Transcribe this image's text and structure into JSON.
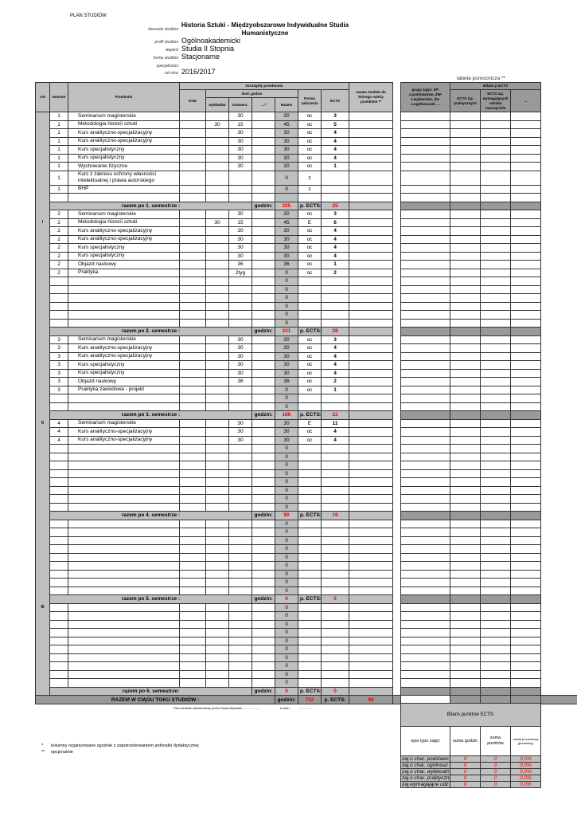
{
  "title": "PLAN STUDIÓW",
  "meta": {
    "kierunek_label": "kierunek studiów:",
    "kierunek": "Historia Sztuki - Międzyobszarowe Indywidualne Studia Humanistyczne",
    "profil_label": "profil studiów:",
    "profil": "Ogólnoakademicki",
    "stopien_label": "stopień:",
    "stopien": "Studia II Stopnia",
    "forma_label": "forma studiów:",
    "forma": "Stacjonarne",
    "specjalnosc_label": "specjalności:",
    "od_roku_label": "od roku:",
    "od_roku": "2016/2017"
  },
  "headers": {
    "rok": "rok",
    "semestr": "semestr",
    "przedmiot": "Przedmiot",
    "szczegoly": "Szczegóły przedmiotu",
    "kod": "KOD",
    "ilosc_godzin": "ilość godzin",
    "wykladow": "wykładów",
    "konwers": "konwers.",
    "other": "....*",
    "razem": "Razem",
    "forma": "Forma zaliczenia",
    "ects": "ECTS",
    "modul": "nazwa modułu do którego należy przedmiot **"
  },
  "aux": {
    "title": "tabela pomocnicza **",
    "grupy": "grupy zajęć: ZP-z.podstawowe, ZW-z.wybieralne, ZU-z.ogólnouczel. ...",
    "bilans": "Bilans p ECTS",
    "ects_prakt": "ECTS zaj. praktycznych",
    "ects_naucz": "ECTS zaj. wymagających udziału nauczyciela",
    "other": "..."
  },
  "years": [
    "I",
    "II",
    "III"
  ],
  "semesters": [
    {
      "rows": [
        [
          "1",
          "Seminarium magisterskie",
          "",
          "",
          "30",
          "",
          "30",
          "oc",
          "3"
        ],
        [
          "1",
          "Metodologia historii sztuki",
          "",
          "30",
          "15",
          "",
          "45",
          "oc",
          "5"
        ],
        [
          "1",
          "Kurs analityczno-specjalizacyjny",
          "",
          "",
          "30",
          "",
          "30",
          "oc",
          "4"
        ],
        [
          "1",
          "Kurs analityczno-specjalizacyjny",
          "",
          "",
          "30",
          "",
          "30",
          "oc",
          "4"
        ],
        [
          "1",
          "Kurs specjalistyczny",
          "",
          "",
          "30",
          "",
          "30",
          "oc",
          "4"
        ],
        [
          "1",
          "Kurs specjalistyczny",
          "",
          "",
          "30",
          "",
          "30",
          "oc",
          "4"
        ],
        [
          "1",
          "Wychowanie fizyczne",
          "",
          "",
          "30",
          "",
          "30",
          "oc",
          "1"
        ],
        [
          "1",
          "Kurs z zakresu ochrony własności intelektualnej i prawa autorskiego",
          "",
          "",
          "",
          "",
          "0",
          "z",
          ""
        ],
        [
          "1",
          "BHP",
          "",
          "",
          "",
          "",
          "0",
          "z",
          ""
        ],
        [
          "",
          "",
          "",
          "",
          "",
          "",
          "",
          "",
          ""
        ]
      ],
      "label": "razem po 1. semestrze :",
      "godzin": "225",
      "ects": "25"
    },
    {
      "rows": [
        [
          "2",
          "Seminarium magisterskie",
          "",
          "",
          "30",
          "",
          "30",
          "oc",
          "3"
        ],
        [
          "2",
          "Metodologia historii sztuki",
          "",
          "30",
          "15",
          "",
          "45",
          "E",
          "6"
        ],
        [
          "2",
          "Kurs analityczno-specjalizacyjny",
          "",
          "",
          "30",
          "",
          "30",
          "oc",
          "4"
        ],
        [
          "2",
          "Kurs analityczno-specjalizacyjny",
          "",
          "",
          "30",
          "",
          "30",
          "oc",
          "4"
        ],
        [
          "2",
          "Kurs specjalistyczny",
          "",
          "",
          "30",
          "",
          "30",
          "oc",
          "4"
        ],
        [
          "2",
          "Kurs specjalistyczny",
          "",
          "",
          "30",
          "",
          "30",
          "oc",
          "4"
        ],
        [
          "2",
          "Objazd naukowy",
          "",
          "",
          "36",
          "",
          "36",
          "oc",
          "1"
        ],
        [
          "2",
          "Praktyka",
          "",
          "",
          "2tyg",
          "",
          "0",
          "oc",
          "2"
        ],
        [
          "",
          "",
          "",
          "",
          "",
          "",
          "0",
          "",
          ""
        ],
        [
          "",
          "",
          "",
          "",
          "",
          "",
          "0",
          "",
          ""
        ],
        [
          "",
          "",
          "",
          "",
          "",
          "",
          "0",
          "",
          ""
        ],
        [
          "",
          "",
          "",
          "",
          "",
          "",
          "0",
          "",
          ""
        ],
        [
          "",
          "",
          "",
          "",
          "",
          "",
          "0",
          "",
          ""
        ],
        [
          "",
          "",
          "",
          "",
          "",
          "",
          "0",
          "",
          ""
        ]
      ],
      "label": "razem po 2. semestrze :",
      "godzin": "231",
      "ects": "28"
    },
    {
      "rows": [
        [
          "3",
          "Seminarium magisterskie",
          "",
          "",
          "30",
          "",
          "30",
          "oc",
          "3"
        ],
        [
          "3",
          "Kurs analityczno-specjalizacyjny",
          "",
          "",
          "30",
          "",
          "30",
          "oc",
          "4"
        ],
        [
          "3",
          "Kurs analityczno-specjalizacyjny",
          "",
          "",
          "30",
          "",
          "30",
          "oc",
          "4"
        ],
        [
          "3",
          "Kurs specjalistyczny",
          "",
          "",
          "30",
          "",
          "30",
          "oc",
          "4"
        ],
        [
          "3",
          "Kurs specjalistyczny",
          "",
          "",
          "30",
          "",
          "30",
          "oc",
          "4"
        ],
        [
          "3",
          "Objazd naukowy",
          "",
          "",
          "36",
          "",
          "36",
          "oc",
          "2"
        ],
        [
          "3",
          "Praktyka zawodowa - projekt",
          "",
          "",
          "",
          "",
          "0",
          "oc",
          "1"
        ],
        [
          "",
          "",
          "",
          "",
          "",
          "",
          "0",
          "",
          ""
        ],
        [
          "",
          "",
          "",
          "",
          "",
          "",
          "0",
          "",
          ""
        ]
      ],
      "label": "razem po 3. semestrze :",
      "godzin": "186",
      "ects": "22"
    },
    {
      "rows": [
        [
          "4",
          "Seminarium magisterskie",
          "",
          "",
          "30",
          "",
          "30",
          "E",
          "11"
        ],
        [
          "4",
          "Kurs analityczno-specjalizacyjny",
          "",
          "",
          "30",
          "",
          "30",
          "oc",
          "4"
        ],
        [
          "4",
          "Kurs analityczno-specjalizacyjny",
          "",
          "",
          "30",
          "",
          "30",
          "oc",
          "4"
        ],
        [
          "",
          "",
          "",
          "",
          "",
          "",
          "0",
          "",
          ""
        ],
        [
          "",
          "",
          "",
          "",
          "",
          "",
          "0",
          "",
          ""
        ],
        [
          "",
          "",
          "",
          "",
          "",
          "",
          "0",
          "",
          ""
        ],
        [
          "",
          "",
          "",
          "",
          "",
          "",
          "0",
          "",
          ""
        ],
        [
          "",
          "",
          "",
          "",
          "",
          "",
          "0",
          "",
          ""
        ],
        [
          "",
          "",
          "",
          "",
          "",
          "",
          "0",
          "",
          ""
        ],
        [
          "",
          "",
          "",
          "",
          "",
          "",
          "0",
          "",
          ""
        ],
        [
          "",
          "",
          "",
          "",
          "",
          "",
          "0",
          "",
          ""
        ]
      ],
      "label": "razem po 4. semestrze :",
      "godzin": "90",
      "ects": "19"
    },
    {
      "rows": [
        [
          "",
          "",
          "",
          "",
          "",
          "",
          "0",
          "",
          ""
        ],
        [
          "",
          "",
          "",
          "",
          "",
          "",
          "0",
          "",
          ""
        ],
        [
          "",
          "",
          "",
          "",
          "",
          "",
          "0",
          "",
          ""
        ],
        [
          "",
          "",
          "",
          "",
          "",
          "",
          "0",
          "",
          ""
        ],
        [
          "",
          "",
          "",
          "",
          "",
          "",
          "0",
          "",
          ""
        ],
        [
          "",
          "",
          "",
          "",
          "",
          "",
          "0",
          "",
          ""
        ],
        [
          "",
          "",
          "",
          "",
          "",
          "",
          "0",
          "",
          ""
        ],
        [
          "",
          "",
          "",
          "",
          "",
          "",
          "0",
          "",
          ""
        ],
        [
          "",
          "",
          "",
          "",
          "",
          "",
          "0",
          "",
          ""
        ]
      ],
      "label": "razem po 5. semestrze :",
      "godzin": "0",
      "ects": "0"
    },
    {
      "rows": [
        [
          "",
          "",
          "",
          "",
          "",
          "",
          "0",
          "",
          ""
        ],
        [
          "",
          "",
          "",
          "",
          "",
          "",
          "0",
          "",
          ""
        ],
        [
          "",
          "",
          "",
          "",
          "",
          "",
          "0",
          "",
          ""
        ],
        [
          "",
          "",
          "",
          "",
          "",
          "",
          "0",
          "",
          ""
        ],
        [
          "",
          "",
          "",
          "",
          "",
          "",
          "0",
          "",
          ""
        ],
        [
          "",
          "",
          "",
          "",
          "",
          "",
          "0",
          "",
          ""
        ],
        [
          "",
          "",
          "",
          "",
          "",
          "",
          "0",
          "",
          ""
        ],
        [
          "",
          "",
          "",
          "",
          "",
          "",
          "0",
          "",
          ""
        ],
        [
          "",
          "",
          "",
          "",
          "",
          "",
          "0",
          "",
          ""
        ],
        [
          "",
          "",
          "",
          "",
          "",
          "",
          "0",
          "",
          ""
        ]
      ],
      "label": "razem po 6. semestrze:",
      "godzin": "0",
      "ects": "0"
    }
  ],
  "sum_labels": {
    "godzin": "godzin:",
    "ects": "p. ECTS:"
  },
  "total": {
    "label": "RAZEM  W CIĄGU TOKU STUDIÓW :",
    "godzin": "732",
    "ects": "94"
  },
  "approval": {
    "text": "Plan studiów zatwierdzony przez Radę Wydziału ...................",
    "date": "w dniu",
    "dots": "..............."
  },
  "footnotes": [
    {
      "mark": "*",
      "text": "kolumny organizowane zgodnie z zapotrzebowaniem jednostki dydaktycznej"
    },
    {
      "mark": "**",
      "text": "opcjonalnie"
    }
  ],
  "bilans": {
    "title": "Bilans punktów ECTS:",
    "cols": [
      "opis typu zajęć",
      "suma godzin",
      "suma punktów",
      "udział procentowy (punktowy)"
    ],
    "rows": [
      [
        "zaj.o char. podstawc",
        "0",
        "0",
        "0,0%"
      ],
      [
        "zaj.o char. ogólnouc",
        "0",
        "0",
        "0,0%"
      ],
      [
        "zaj.o char. wybieraln",
        "0",
        "0",
        "0,0%"
      ],
      [
        "zaj.o char. praktyczn",
        "0",
        "0",
        "0,0%"
      ],
      [
        "zaj.wymagające udz",
        "0",
        "0",
        "0,0%"
      ]
    ]
  },
  "colors": {
    "header_gray": "#c0c0c0",
    "dark_gray": "#999999",
    "accent_red": "#e00000"
  }
}
